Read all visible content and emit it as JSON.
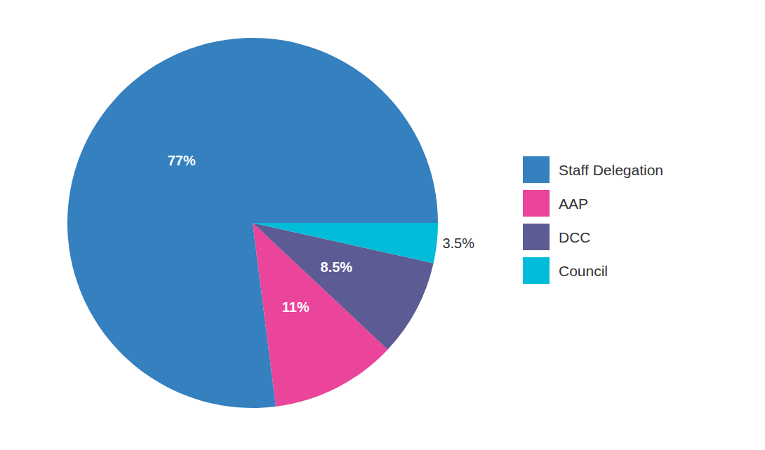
{
  "chart_data": {
    "type": "pie",
    "categories": [
      "Staff Delegation",
      "AAP",
      "DCC",
      "Council"
    ],
    "values": [
      77,
      11,
      8.5,
      3.5
    ],
    "value_labels": [
      "77%",
      "11%",
      "8.5%",
      "3.5%"
    ],
    "colors": [
      "#3580bf",
      "#ea449b",
      "#5c5b93",
      "#00bcd8"
    ],
    "data_labels": true,
    "legend": "right"
  }
}
